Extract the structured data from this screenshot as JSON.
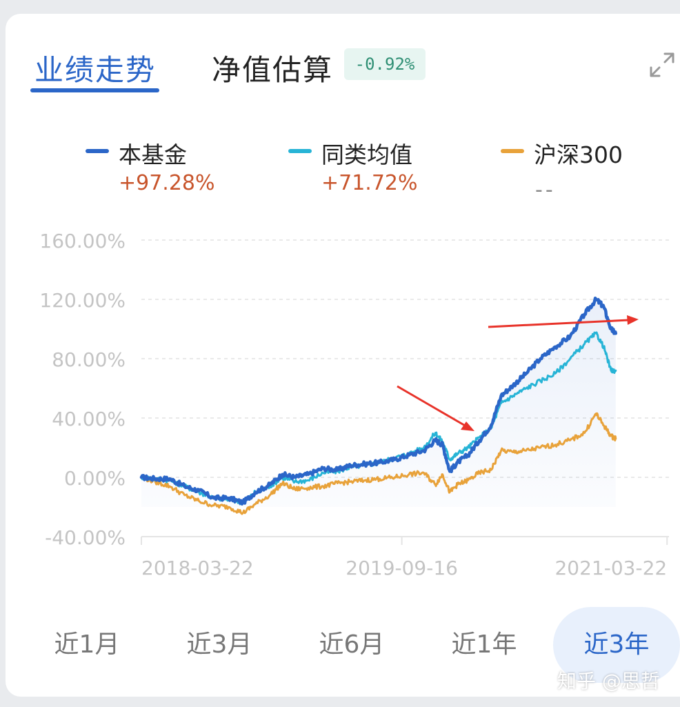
{
  "tabs": {
    "performance_label": "业绩走势",
    "estimate_label": "净值估算",
    "estimate_change": "-0.92%"
  },
  "legend": [
    {
      "name": "本基金",
      "value": "+97.28%",
      "color": "#2b66c8"
    },
    {
      "name": "同类均值",
      "value": "+71.72%",
      "color": "#27b4d6"
    },
    {
      "name": "沪深300",
      "value": "--",
      "color": "#e8a23a"
    }
  ],
  "chart_data": {
    "type": "line",
    "y_unit": "%",
    "ylim": [
      -40,
      160
    ],
    "y_ticks": [
      160,
      120,
      80,
      40,
      0,
      -40
    ],
    "y_tick_labels": [
      "160.00%",
      "120.00%",
      "80.00%",
      "40.00%",
      "0.00%",
      "-40.00%"
    ],
    "x_tick_labels": [
      "2018-03-22",
      "2019-09-16",
      "2021-03-22"
    ],
    "x_ticks": [
      "2018-03-22",
      "2019-09-16",
      "2021-03-22"
    ],
    "xlim": [
      "2018-03-22",
      "2021-03-26"
    ],
    "grid": true,
    "series": [
      {
        "name": "本基金",
        "color": "#2b66c8",
        "points": [
          [
            "2018-03-22",
            0
          ],
          [
            "2018-04-20",
            -1
          ],
          [
            "2018-05-20",
            -1
          ],
          [
            "2018-06-20",
            -6
          ],
          [
            "2018-07-20",
            -9
          ],
          [
            "2018-08-20",
            -14
          ],
          [
            "2018-09-20",
            -14
          ],
          [
            "2018-10-20",
            -17
          ],
          [
            "2018-11-15",
            -10
          ],
          [
            "2018-12-15",
            -5
          ],
          [
            "2019-01-10",
            2
          ],
          [
            "2019-02-05",
            0
          ],
          [
            "2019-03-05",
            2
          ],
          [
            "2019-04-05",
            6
          ],
          [
            "2019-05-05",
            5
          ],
          [
            "2019-06-01",
            8
          ],
          [
            "2019-07-01",
            9
          ],
          [
            "2019-08-01",
            10
          ],
          [
            "2019-09-01",
            12
          ],
          [
            "2019-10-01",
            15
          ],
          [
            "2019-11-01",
            18
          ],
          [
            "2019-11-25",
            25
          ],
          [
            "2019-12-10",
            22
          ],
          [
            "2019-12-25",
            4
          ],
          [
            "2020-01-10",
            10
          ],
          [
            "2020-02-01",
            15
          ],
          [
            "2020-02-25",
            25
          ],
          [
            "2020-03-20",
            35
          ],
          [
            "2020-04-10",
            55
          ],
          [
            "2020-05-05",
            62
          ],
          [
            "2020-06-01",
            70
          ],
          [
            "2020-07-01",
            80
          ],
          [
            "2020-08-01",
            88
          ],
          [
            "2020-09-01",
            95
          ],
          [
            "2020-10-01",
            110
          ],
          [
            "2020-10-25",
            120
          ],
          [
            "2020-11-10",
            115
          ],
          [
            "2020-11-25",
            100
          ],
          [
            "2020-12-05",
            97
          ]
        ]
      },
      {
        "name": "同类均值",
        "color": "#27b4d6",
        "points": [
          [
            "2018-03-22",
            0
          ],
          [
            "2018-04-20",
            -1
          ],
          [
            "2018-05-20",
            -2
          ],
          [
            "2018-06-20",
            -6
          ],
          [
            "2018-07-20",
            -10
          ],
          [
            "2018-08-20",
            -14
          ],
          [
            "2018-09-20",
            -15
          ],
          [
            "2018-10-20",
            -17
          ],
          [
            "2018-11-15",
            -10
          ],
          [
            "2018-12-15",
            -6
          ],
          [
            "2019-01-10",
            0
          ],
          [
            "2019-02-05",
            -3
          ],
          [
            "2019-03-05",
            -2
          ],
          [
            "2019-04-05",
            3
          ],
          [
            "2019-05-05",
            4
          ],
          [
            "2019-06-01",
            7
          ],
          [
            "2019-07-01",
            8
          ],
          [
            "2019-08-01",
            10
          ],
          [
            "2019-09-01",
            13
          ],
          [
            "2019-10-01",
            16
          ],
          [
            "2019-11-01",
            20
          ],
          [
            "2019-11-25",
            30
          ],
          [
            "2019-12-10",
            24
          ],
          [
            "2019-12-25",
            12
          ],
          [
            "2020-01-10",
            16
          ],
          [
            "2020-02-01",
            20
          ],
          [
            "2020-02-25",
            27
          ],
          [
            "2020-03-20",
            33
          ],
          [
            "2020-04-10",
            50
          ],
          [
            "2020-05-05",
            55
          ],
          [
            "2020-06-01",
            60
          ],
          [
            "2020-07-01",
            65
          ],
          [
            "2020-08-01",
            70
          ],
          [
            "2020-09-01",
            80
          ],
          [
            "2020-10-01",
            90
          ],
          [
            "2020-10-25",
            97
          ],
          [
            "2020-11-10",
            88
          ],
          [
            "2020-11-25",
            72
          ],
          [
            "2020-12-05",
            72
          ]
        ]
      },
      {
        "name": "沪深300",
        "color": "#e8a23a",
        "points": [
          [
            "2018-03-22",
            0
          ],
          [
            "2018-04-20",
            -3
          ],
          [
            "2018-05-20",
            -6
          ],
          [
            "2018-06-20",
            -12
          ],
          [
            "2018-07-20",
            -16
          ],
          [
            "2018-08-20",
            -19
          ],
          [
            "2018-09-20",
            -20
          ],
          [
            "2018-10-20",
            -24
          ],
          [
            "2018-11-15",
            -18
          ],
          [
            "2018-12-15",
            -12
          ],
          [
            "2019-01-10",
            -4
          ],
          [
            "2019-02-05",
            -8
          ],
          [
            "2019-03-05",
            -7
          ],
          [
            "2019-04-05",
            -6
          ],
          [
            "2019-05-05",
            -4
          ],
          [
            "2019-06-01",
            -3
          ],
          [
            "2019-07-01",
            -2
          ],
          [
            "2019-08-01",
            -1
          ],
          [
            "2019-09-01",
            0
          ],
          [
            "2019-10-01",
            2
          ],
          [
            "2019-11-01",
            3
          ],
          [
            "2019-11-25",
            -5
          ],
          [
            "2019-12-10",
            2
          ],
          [
            "2019-12-25",
            -10
          ],
          [
            "2020-01-10",
            -5
          ],
          [
            "2020-02-01",
            -2
          ],
          [
            "2020-02-25",
            3
          ],
          [
            "2020-03-20",
            5
          ],
          [
            "2020-04-10",
            18
          ],
          [
            "2020-05-05",
            17
          ],
          [
            "2020-06-01",
            18
          ],
          [
            "2020-07-01",
            20
          ],
          [
            "2020-08-01",
            22
          ],
          [
            "2020-09-01",
            25
          ],
          [
            "2020-10-01",
            30
          ],
          [
            "2020-10-25",
            43
          ],
          [
            "2020-11-10",
            35
          ],
          [
            "2020-11-25",
            28
          ],
          [
            "2020-12-05",
            26
          ]
        ]
      }
    ]
  },
  "ranges": [
    {
      "label": "近1月",
      "active": false
    },
    {
      "label": "近3月",
      "active": false
    },
    {
      "label": "近6月",
      "active": false
    },
    {
      "label": "近1年",
      "active": false
    },
    {
      "label": "近3年",
      "active": true
    }
  ],
  "watermark": "知乎 @思哲"
}
